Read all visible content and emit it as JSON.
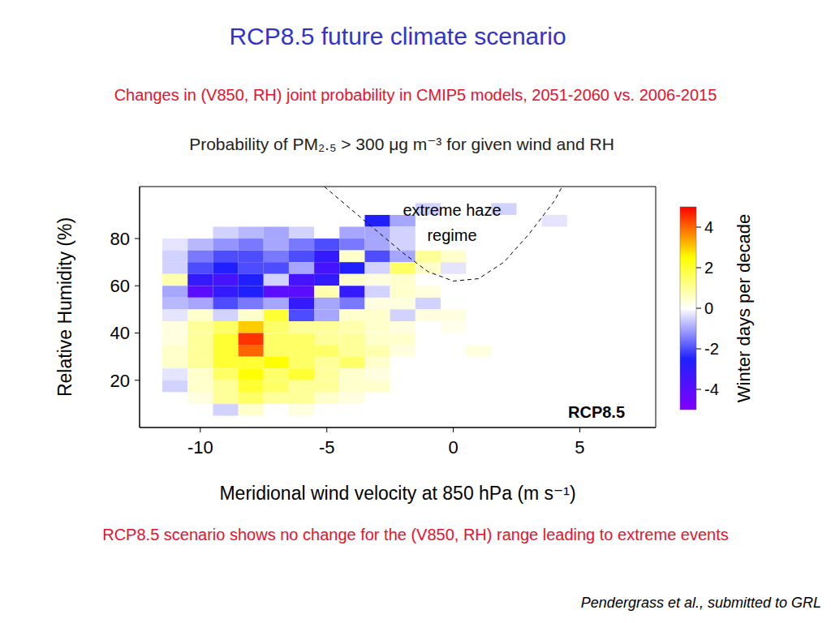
{
  "slide": {
    "title": "RCP8.5 future climate scenario",
    "subtitle": "Changes in (V850, RH) joint probability in CMIP5 models, 2051-2060 vs. 2006-2015",
    "conclusion": "RCP8.5 scenario shows no change for the (V850, RH) range leading to extreme events",
    "citation": "Pendergrass et al., submitted to GRL"
  },
  "chart_data": {
    "type": "heatmap",
    "title": "Probability of PM₂.₅ > 300 μg m⁻³ for given wind and RH",
    "panel_label": "RCP8.5",
    "annotation": "extreme haze regime",
    "x_label": "Meridional wind velocity at 850 hPa (m s⁻¹)",
    "y_label": "Relative Humidity (%)",
    "xlim": [
      -12.4,
      8
    ],
    "ylim": [
      0,
      102
    ],
    "xticks": [
      -10,
      -5,
      0,
      5
    ],
    "yticks": [
      20,
      40,
      60,
      80
    ],
    "x_bin_width": 1,
    "y_bin_width": 5,
    "colorbar": {
      "label": "Winter days per decade",
      "range": [
        -5,
        5
      ],
      "ticks": [
        -4,
        -2,
        0,
        2,
        4
      ],
      "colors": [
        "#8000ff",
        "#2020ff",
        "#ffffff",
        "#ffff00",
        "#ff0000"
      ]
    },
    "regime_boundary": {
      "line_style": "dashed",
      "color": "#000000",
      "x": [
        -5.1,
        -4,
        -3,
        -2,
        -1,
        0,
        1,
        2,
        3,
        4,
        4.3
      ],
      "y": [
        102,
        92,
        83,
        74,
        66,
        62,
        63,
        70,
        82,
        96,
        102
      ]
    },
    "cells": [
      [
        -1,
        92.5,
        -0.5
      ],
      [
        2,
        92.5,
        -0.5
      ],
      [
        -3,
        87.5,
        -2.5
      ],
      [
        -2,
        87.5,
        -1
      ],
      [
        4,
        87.5,
        -0.3
      ],
      [
        -9,
        82.5,
        -0.5
      ],
      [
        -8,
        82.5,
        -0.8
      ],
      [
        -7,
        82.5,
        -1
      ],
      [
        -6,
        82.5,
        -0.5
      ],
      [
        -4,
        82.5,
        -1
      ],
      [
        -3,
        82.5,
        -1
      ],
      [
        -2,
        82.5,
        -0.5
      ],
      [
        -11,
        77.5,
        -0.3
      ],
      [
        -10,
        77.5,
        -0.8
      ],
      [
        -9,
        77.5,
        -1.2
      ],
      [
        -8,
        77.5,
        -1.5
      ],
      [
        -7,
        77.5,
        -1
      ],
      [
        -6,
        77.5,
        -1.5
      ],
      [
        -5,
        77.5,
        -2
      ],
      [
        -4,
        77.5,
        -1.5
      ],
      [
        -3,
        77.5,
        -1
      ],
      [
        -2,
        77.5,
        -0.5
      ],
      [
        -11,
        72.5,
        -0.5
      ],
      [
        -10,
        72.5,
        -1.5
      ],
      [
        -9,
        72.5,
        -2
      ],
      [
        -8,
        72.5,
        -2
      ],
      [
        -7,
        72.5,
        -1.5
      ],
      [
        -6,
        72.5,
        -2
      ],
      [
        -5,
        72.5,
        -3
      ],
      [
        -4,
        72.5,
        0.5
      ],
      [
        -3,
        72.5,
        -2
      ],
      [
        -2,
        72.5,
        -1
      ],
      [
        -1,
        72.5,
        1
      ],
      [
        0,
        72.5,
        0.5
      ],
      [
        -11,
        67.5,
        -0.5
      ],
      [
        -10,
        67.5,
        -2
      ],
      [
        -9,
        67.5,
        -2.5
      ],
      [
        -8,
        67.5,
        -2
      ],
      [
        -7,
        67.5,
        -2
      ],
      [
        -6,
        67.5,
        -1
      ],
      [
        -5,
        67.5,
        -3.5
      ],
      [
        -4,
        67.5,
        -2.5
      ],
      [
        -3,
        67.5,
        -0.5
      ],
      [
        -2,
        67.5,
        1.5
      ],
      [
        -1,
        67.5,
        0.5
      ],
      [
        0,
        67.5,
        -0.3
      ],
      [
        -11,
        62.5,
        0.8
      ],
      [
        -10,
        62.5,
        -3
      ],
      [
        -9,
        62.5,
        -3.5
      ],
      [
        -8,
        62.5,
        -2.5
      ],
      [
        -7,
        62.5,
        -0.5
      ],
      [
        -6,
        62.5,
        -3.5
      ],
      [
        -5,
        62.5,
        -3
      ],
      [
        -4,
        62.5,
        0.5
      ],
      [
        -3,
        62.5,
        0.3
      ],
      [
        -2,
        62.5,
        0.5
      ],
      [
        -11,
        57.5,
        -1
      ],
      [
        -10,
        57.5,
        -4
      ],
      [
        -9,
        57.5,
        -3
      ],
      [
        -8,
        57.5,
        -2.5
      ],
      [
        -7,
        57.5,
        -4
      ],
      [
        -6,
        57.5,
        -4
      ],
      [
        -5,
        57.5,
        0.8
      ],
      [
        -4,
        57.5,
        -3
      ],
      [
        -3,
        57.5,
        -0.5
      ],
      [
        -2,
        57.5,
        0.5
      ],
      [
        -1,
        57.5,
        0.3
      ],
      [
        -11,
        52.5,
        -0.8
      ],
      [
        -10,
        52.5,
        -1
      ],
      [
        -9,
        52.5,
        -2
      ],
      [
        -8,
        52.5,
        -1.5
      ],
      [
        -7,
        52.5,
        -1
      ],
      [
        -6,
        52.5,
        -3
      ],
      [
        -5,
        52.5,
        -1
      ],
      [
        -4,
        52.5,
        -1.5
      ],
      [
        -3,
        52.5,
        0.3
      ],
      [
        -2,
        52.5,
        0.3
      ],
      [
        -1,
        52.5,
        -0.5
      ],
      [
        -11,
        47.5,
        -0.3
      ],
      [
        -10,
        47.5,
        0.5
      ],
      [
        -9,
        47.5,
        -0.5
      ],
      [
        -8,
        47.5,
        0.5
      ],
      [
        -7,
        47.5,
        2
      ],
      [
        -6,
        47.5,
        -2
      ],
      [
        -5,
        47.5,
        -1
      ],
      [
        -4,
        47.5,
        0.5
      ],
      [
        -3,
        47.5,
        0.5
      ],
      [
        -2,
        47.5,
        -0.5
      ],
      [
        -1,
        47.5,
        0.3
      ],
      [
        0,
        47.5,
        0.3
      ],
      [
        -11,
        42.5,
        0.3
      ],
      [
        -10,
        42.5,
        1
      ],
      [
        -9,
        42.5,
        1.5
      ],
      [
        -8,
        42.5,
        3
      ],
      [
        -7,
        42.5,
        1.5
      ],
      [
        -6,
        42.5,
        1
      ],
      [
        -5,
        42.5,
        1
      ],
      [
        -4,
        42.5,
        0.8
      ],
      [
        -3,
        42.5,
        0.5
      ],
      [
        -2,
        42.5,
        0.3
      ],
      [
        0,
        42.5,
        0.2
      ],
      [
        -11,
        37.5,
        0.3
      ],
      [
        -10,
        37.5,
        1
      ],
      [
        -9,
        37.5,
        2
      ],
      [
        -8,
        37.5,
        4.5
      ],
      [
        -7,
        37.5,
        1.5
      ],
      [
        -6,
        37.5,
        1.5
      ],
      [
        -5,
        37.5,
        1
      ],
      [
        -4,
        37.5,
        1
      ],
      [
        -3,
        37.5,
        0.5
      ],
      [
        -2,
        37.5,
        0.5
      ],
      [
        -11,
        32.5,
        0.5
      ],
      [
        -10,
        32.5,
        1
      ],
      [
        -9,
        32.5,
        2
      ],
      [
        -8,
        32.5,
        4
      ],
      [
        -7,
        32.5,
        1.5
      ],
      [
        -6,
        32.5,
        1.5
      ],
      [
        -5,
        32.5,
        1.5
      ],
      [
        -4,
        32.5,
        1
      ],
      [
        -3,
        32.5,
        0.8
      ],
      [
        -2,
        32.5,
        0.3
      ],
      [
        1,
        32.5,
        0.3
      ],
      [
        -11,
        27.5,
        0.5
      ],
      [
        -10,
        27.5,
        1
      ],
      [
        -9,
        27.5,
        2
      ],
      [
        -8,
        27.5,
        2
      ],
      [
        -7,
        27.5,
        2.5
      ],
      [
        -6,
        27.5,
        1.5
      ],
      [
        -5,
        27.5,
        1
      ],
      [
        -4,
        27.5,
        1.5
      ],
      [
        -3,
        27.5,
        0.5
      ],
      [
        -11,
        22.5,
        -0.3
      ],
      [
        -10,
        22.5,
        0.5
      ],
      [
        -9,
        22.5,
        1.5
      ],
      [
        -8,
        22.5,
        2.5
      ],
      [
        -7,
        22.5,
        1.5
      ],
      [
        -6,
        22.5,
        2
      ],
      [
        -5,
        22.5,
        1
      ],
      [
        -4,
        22.5,
        0.5
      ],
      [
        -3,
        22.5,
        0.3
      ],
      [
        -11,
        17.5,
        -0.5
      ],
      [
        -10,
        17.5,
        0.5
      ],
      [
        -9,
        17.5,
        1
      ],
      [
        -8,
        17.5,
        2
      ],
      [
        -7,
        17.5,
        1.5
      ],
      [
        -6,
        17.5,
        1
      ],
      [
        -5,
        17.5,
        1
      ],
      [
        -4,
        17.5,
        0.5
      ],
      [
        -3,
        17.5,
        0.5
      ],
      [
        -10,
        12.5,
        0.3
      ],
      [
        -9,
        12.5,
        1
      ],
      [
        -8,
        12.5,
        1.5
      ],
      [
        -7,
        12.5,
        1
      ],
      [
        -6,
        12.5,
        1
      ],
      [
        -5,
        12.5,
        0.5
      ],
      [
        -4,
        12.5,
        0.3
      ],
      [
        -9,
        7.5,
        -0.5
      ],
      [
        -8,
        7.5,
        0.5
      ],
      [
        -6,
        7.5,
        0.3
      ]
    ]
  }
}
